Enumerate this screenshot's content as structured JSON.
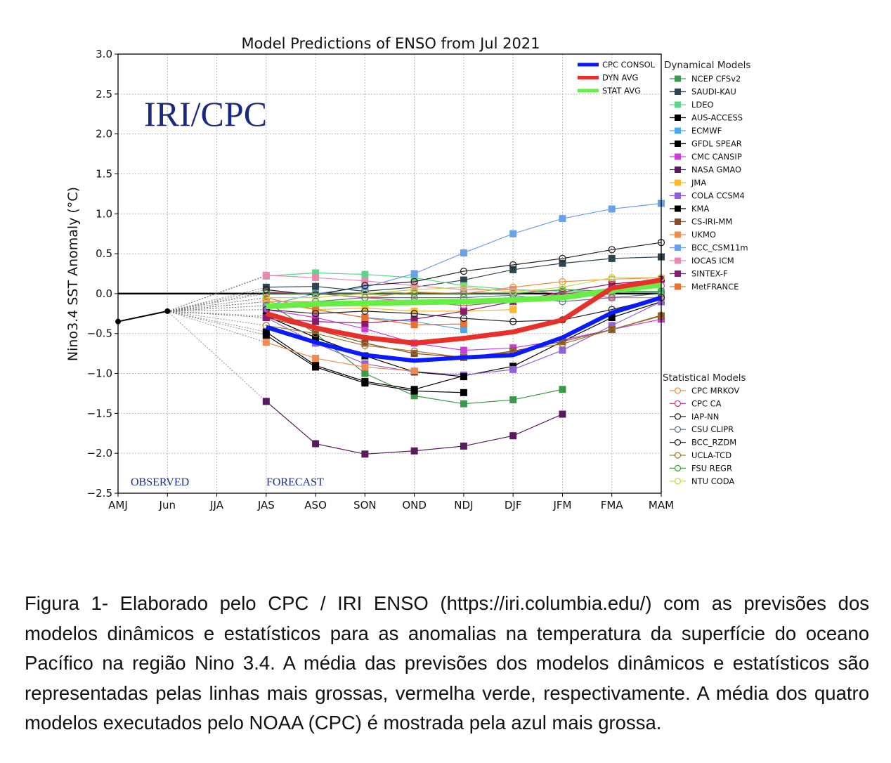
{
  "chart_data": {
    "type": "line",
    "title": "Model Predictions of ENSO from Jul 2021",
    "ylabel": "Nino3.4 SST Anomaly (°C)",
    "xlabel": "",
    "categories": [
      "AMJ",
      "Jun",
      "JJA",
      "JAS",
      "ASO",
      "SON",
      "OND",
      "NDJ",
      "DJF",
      "JFM",
      "FMA",
      "MAM"
    ],
    "ylim": [
      -2.5,
      3.0
    ],
    "yticks": [
      3.0,
      2.5,
      2.0,
      1.5,
      1.0,
      0.5,
      0.0,
      -0.5,
      -1.0,
      -1.5,
      -2.0,
      -2.5
    ],
    "ytick_labels": [
      "3.0",
      "2.5",
      "2.0",
      "1.5",
      "1.0",
      "0.5",
      "0.0",
      "−0.5",
      "−1.0",
      "−1.5",
      "−2.0",
      "−2.5"
    ],
    "grid": true,
    "watermark": "IRI/CPC",
    "annotations": {
      "observed": "OBSERVED",
      "forecast": "FORECAST"
    },
    "forecast_categories": [
      "JAS",
      "ASO",
      "SON",
      "OND",
      "NDJ",
      "DJF",
      "JFM",
      "FMA",
      "MAM"
    ],
    "observed": {
      "categories": [
        "AMJ",
        "Jun"
      ],
      "values": [
        -0.35,
        -0.22
      ],
      "color": "#000000"
    },
    "averages": [
      {
        "name": "CPC CONSOL",
        "color": "#0a1aff",
        "values": [
          -0.42,
          -0.61,
          -0.77,
          -0.84,
          -0.8,
          -0.77,
          -0.55,
          -0.24,
          -0.05
        ]
      },
      {
        "name": "DYN AVG",
        "color": "#e8302a",
        "values": [
          -0.25,
          -0.43,
          -0.55,
          -0.62,
          -0.56,
          -0.48,
          -0.33,
          0.07,
          0.17
        ]
      },
      {
        "name": "STAT AVG",
        "color": "#66ee44",
        "values": [
          -0.16,
          -0.13,
          -0.12,
          -0.11,
          -0.1,
          -0.08,
          -0.05,
          0.04,
          0.11
        ]
      }
    ],
    "dynamical_title": "Dynamical Models",
    "dynamical": [
      {
        "name": "NCEP CFSv2",
        "color": "#3a9a4a",
        "values": [
          -0.1,
          -0.5,
          -1.0,
          -1.28,
          -1.38,
          -1.33,
          -1.2,
          null,
          null
        ]
      },
      {
        "name": "SAUDI-KAU",
        "color": "#2e4450",
        "values": [
          0.08,
          0.09,
          0.03,
          0.08,
          0.17,
          0.3,
          0.38,
          0.44,
          0.46
        ]
      },
      {
        "name": "LDEO",
        "color": "#5ad68a",
        "values": [
          0.22,
          0.26,
          0.24,
          0.2,
          0.1,
          0.05,
          0.03,
          0.02,
          0.02
        ]
      },
      {
        "name": "AUS-ACCESS",
        "color": "#000000",
        "values": [
          -0.52,
          -0.92,
          -1.12,
          -1.22,
          -1.24,
          null,
          null,
          null,
          null
        ]
      },
      {
        "name": "ECMWF",
        "color": "#4aa8f0",
        "values": [
          -0.1,
          -0.2,
          -0.3,
          -0.35,
          -0.45,
          null,
          null,
          null,
          null
        ]
      },
      {
        "name": "GFDL SPEAR",
        "color": "#000000",
        "values": [
          -0.48,
          -0.9,
          -1.1,
          -1.2,
          -1.03,
          -0.91,
          -0.6,
          -0.3,
          -0.1
        ]
      },
      {
        "name": "CMC CANSIP",
        "color": "#c840d8",
        "values": [
          -0.2,
          -0.3,
          -0.44,
          -0.62,
          -0.71,
          -0.68,
          -0.58,
          -0.45,
          -0.32
        ]
      },
      {
        "name": "NASA GMAO",
        "color": "#5a1a5e",
        "values": [
          -1.35,
          -1.88,
          -2.01,
          -1.97,
          -1.91,
          -1.78,
          -1.51,
          null,
          null
        ]
      },
      {
        "name": "JMA",
        "color": "#f8b830",
        "values": [
          -0.1,
          -0.2,
          -0.18,
          -0.22,
          -0.22,
          -0.2,
          null,
          null,
          null
        ]
      },
      {
        "name": "COLA CCSM4",
        "color": "#9060d8",
        "values": [
          -0.3,
          -0.62,
          -0.88,
          -0.98,
          -1.02,
          -0.95,
          -0.71,
          -0.4,
          -0.1
        ]
      },
      {
        "name": "KMA",
        "color": "#000000",
        "values": [
          -0.28,
          -0.55,
          -0.78,
          -0.98,
          -1.04,
          null,
          null,
          null,
          null
        ]
      },
      {
        "name": "CS-IRI-MM",
        "color": "#8a4a2a",
        "values": [
          -0.3,
          -0.45,
          -0.62,
          -0.75,
          -0.8,
          -0.72,
          -0.6,
          -0.45,
          -0.28
        ]
      },
      {
        "name": "UKMO",
        "color": "#f08a50",
        "values": [
          -0.61,
          -0.81,
          -0.92,
          -0.97,
          null,
          null,
          null,
          null,
          null
        ]
      },
      {
        "name": "BCC_CSM11m",
        "color": "#6aa0e8",
        "values": [
          -0.15,
          0.0,
          0.08,
          0.25,
          0.51,
          0.75,
          0.94,
          1.06,
          1.13
        ]
      },
      {
        "name": "IOCAS ICM",
        "color": "#e888b0",
        "values": [
          0.23,
          0.2,
          0.16,
          0.1,
          0.05,
          0.05,
          0.0,
          -0.05,
          -0.05
        ]
      },
      {
        "name": "SINTEX-F",
        "color": "#8a1a6a",
        "values": [
          -0.3,
          -0.35,
          -0.37,
          -0.32,
          -0.22,
          -0.1,
          0.02,
          0.12,
          0.18
        ]
      },
      {
        "name": "MetFRANCE",
        "color": "#e87030",
        "values": [
          -0.05,
          -0.2,
          -0.3,
          -0.39,
          -0.38,
          null,
          null,
          null,
          null
        ]
      }
    ],
    "statistical_title": "Statistical Models",
    "statistical": [
      {
        "name": "CPC MRKOV",
        "color": "#e89040",
        "values": [
          -0.1,
          -0.1,
          -0.05,
          0.02,
          0.0,
          0.08,
          0.15,
          0.18,
          0.2
        ]
      },
      {
        "name": "CPC CA",
        "color": "#c04a90",
        "values": [
          0.02,
          0.0,
          -0.05,
          -0.1,
          -0.15,
          -0.1,
          0.0,
          0.05,
          0.1
        ]
      },
      {
        "name": "IAP-NN",
        "color": "#222222",
        "values": [
          0.05,
          -0.02,
          0.1,
          0.15,
          0.28,
          0.36,
          0.44,
          0.55,
          0.64
        ]
      },
      {
        "name": "CSU CLIPR",
        "color": "#607888",
        "values": [
          -0.15,
          -0.1,
          -0.05,
          -0.05,
          -0.05,
          -0.02,
          -0.1,
          -0.05,
          0.0
        ]
      },
      {
        "name": "BCC_RZDM",
        "color": "#222222",
        "values": [
          -0.2,
          -0.25,
          -0.22,
          -0.25,
          -0.31,
          -0.35,
          -0.33,
          -0.2,
          -0.05
        ]
      },
      {
        "name": "UCLA-TCD",
        "color": "#9a7a30",
        "values": [
          -0.4,
          -0.5,
          -0.65,
          -0.72,
          -0.8,
          -0.73,
          -0.63,
          -0.45,
          -0.27
        ]
      },
      {
        "name": "FSU REGR",
        "color": "#40a040",
        "values": [
          0.0,
          0.0,
          0.0,
          0.0,
          0.0,
          0.0,
          0.05,
          0.03,
          0.03
        ]
      },
      {
        "name": "NTU CODA",
        "color": "#c8d840",
        "values": [
          -0.05,
          -0.05,
          0.0,
          0.05,
          0.08,
          0.02,
          0.08,
          0.2,
          0.2
        ]
      }
    ]
  },
  "caption": "Figura 1- Elaborado pelo CPC / IRI ENSO (https://iri.columbia.edu/) com as previsões dos modelos dinâmicos e estatísticos para as anomalias na temperatura da superfície do oceano Pacífico na região Nino 3.4. A média das previsões dos modelos dinâmicos e estatísticos são representadas pelas linhas mais grossas, vermelha verde, respectivamente. A média dos quatro modelos executados pelo NOAA (CPC) é mostrada pela azul mais grossa."
}
